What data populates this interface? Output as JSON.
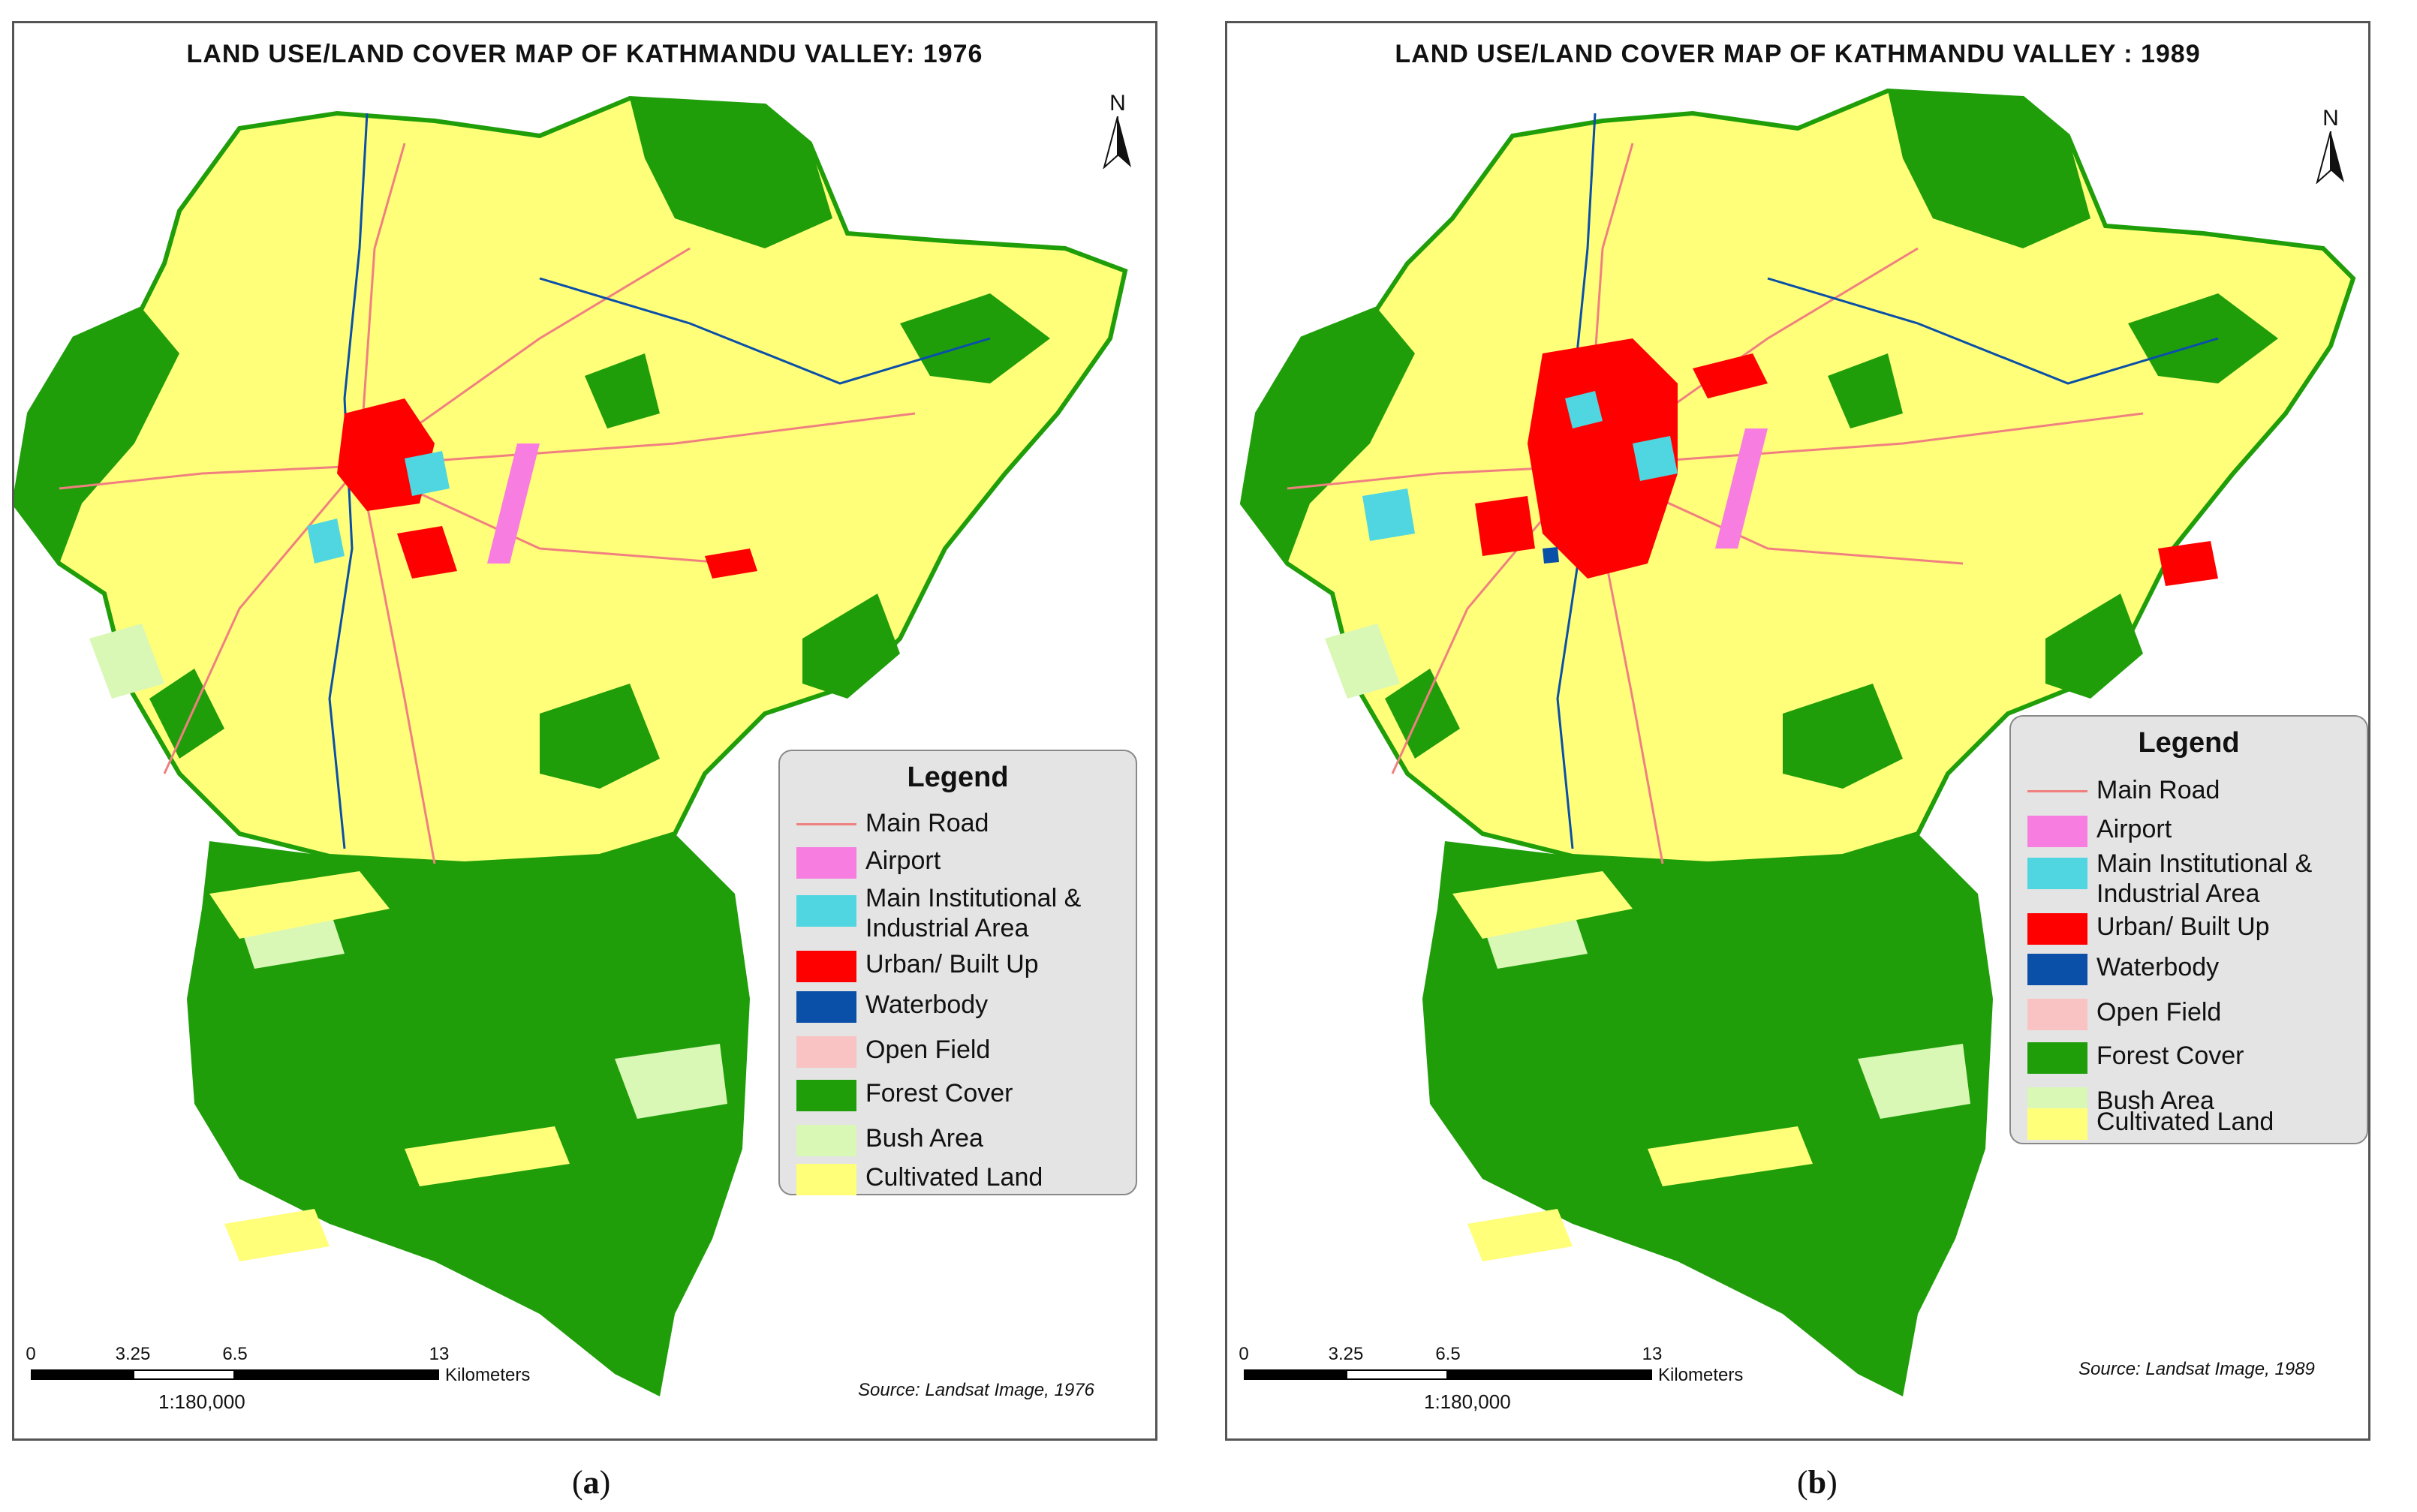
{
  "colors": {
    "main_road": "#f08080",
    "airport": "#f77de0",
    "institutional": "#4fd6e0",
    "urban": "#ff0000",
    "waterbody": "#0a4fa8",
    "open_field": "#f9c3c3",
    "forest": "#1f9e0a",
    "bush": "#d9f7b5",
    "cultivated": "#ffff7a"
  },
  "panels": [
    {
      "id": "a",
      "title": "LAND USE/LAND COVER MAP OF KATHMANDU VALLEY: 1976",
      "north": "N",
      "legend": {
        "title": "Legend",
        "items": [
          {
            "label": "Main Road",
            "swatch": "line",
            "color": "#f08080"
          },
          {
            "label": "Airport",
            "swatch": "box",
            "color": "#f77de0"
          },
          {
            "label": "Main Institutional & Industrial Area",
            "swatch": "box",
            "color": "#4fd6e0"
          },
          {
            "label": "Urban/ Built Up",
            "swatch": "box",
            "color": "#ff0000"
          },
          {
            "label": "Waterbody",
            "swatch": "box",
            "color": "#0a4fa8"
          },
          {
            "label": "Open Field",
            "swatch": "box",
            "color": "#f9c3c3"
          },
          {
            "label": "Forest Cover",
            "swatch": "box",
            "color": "#1f9e0a"
          },
          {
            "label": "Bush Area",
            "swatch": "box",
            "color": "#d9f7b5"
          },
          {
            "label": "Cultivated Land",
            "swatch": "box",
            "color": "#ffff7a"
          }
        ]
      },
      "scale": {
        "ticks": [
          "0",
          "3.25",
          "6.5",
          "13"
        ],
        "unit": "Kilometers",
        "ratio": "1:180,000"
      },
      "source": "Source: Landsat Image, 1976",
      "caption": "a"
    },
    {
      "id": "b",
      "title": "LAND USE/LAND COVER MAP OF KATHMANDU VALLEY : 1989",
      "north": "N",
      "legend": {
        "title": "Legend",
        "items": [
          {
            "label": "Main Road",
            "swatch": "line",
            "color": "#f08080"
          },
          {
            "label": "Airport",
            "swatch": "box",
            "color": "#f77de0"
          },
          {
            "label": "Main Institutional & Industrial Area",
            "swatch": "box",
            "color": "#4fd6e0"
          },
          {
            "label": "Urban/ Built Up",
            "swatch": "box",
            "color": "#ff0000"
          },
          {
            "label": "Waterbody",
            "swatch": "box",
            "color": "#0a4fa8"
          },
          {
            "label": "Open Field",
            "swatch": "box",
            "color": "#f9c3c3"
          },
          {
            "label": "Forest Cover",
            "swatch": "box",
            "color": "#1f9e0a"
          },
          {
            "label": "Bush Area",
            "swatch": "box",
            "color": "#d9f7b5"
          },
          {
            "label": "Cultivated Land",
            "swatch": "box",
            "color": "#ffff7a"
          }
        ]
      },
      "scale": {
        "ticks": [
          "0",
          "3.25",
          "6.5",
          "13"
        ],
        "unit": "Kilometers",
        "ratio": "1:180,000"
      },
      "source": "Source: Landsat Image, 1989",
      "caption": "b"
    }
  ]
}
